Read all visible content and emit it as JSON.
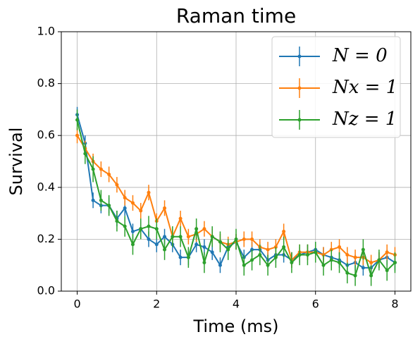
{
  "chart_data": {
    "type": "line",
    "title": "Raman time",
    "xlabel": "Time (ms)",
    "ylabel": "Survival",
    "x": [
      0,
      0.2,
      0.4,
      0.6,
      0.8,
      1.0,
      1.2,
      1.4,
      1.6,
      1.8,
      2.0,
      2.2,
      2.4,
      2.6,
      2.8,
      3.0,
      3.2,
      3.4,
      3.6,
      3.8,
      4.0,
      4.2,
      4.4,
      4.6,
      4.8,
      5.0,
      5.2,
      5.4,
      5.6,
      5.8,
      6.0,
      6.2,
      6.4,
      6.6,
      6.8,
      7.0,
      7.2,
      7.4,
      7.6,
      7.8,
      8.0
    ],
    "series": [
      {
        "name": "N = 0",
        "color": "#1f77b4",
        "values": [
          0.68,
          0.57,
          0.35,
          0.33,
          0.33,
          0.28,
          0.32,
          0.23,
          0.24,
          0.2,
          0.18,
          0.21,
          0.18,
          0.13,
          0.13,
          0.18,
          0.17,
          0.15,
          0.1,
          0.17,
          0.19,
          0.13,
          0.16,
          0.16,
          0.12,
          0.14,
          0.14,
          0.12,
          0.14,
          0.15,
          0.16,
          0.14,
          0.13,
          0.12,
          0.1,
          0.11,
          0.09,
          0.09,
          0.12,
          0.13,
          0.11
        ],
        "errors": [
          0.03,
          0.03,
          0.03,
          0.03,
          0.03,
          0.03,
          0.03,
          0.03,
          0.03,
          0.03,
          0.03,
          0.03,
          0.03,
          0.03,
          0.03,
          0.03,
          0.03,
          0.03,
          0.03,
          0.03,
          0.03,
          0.03,
          0.03,
          0.03,
          0.03,
          0.03,
          0.03,
          0.03,
          0.03,
          0.03,
          0.03,
          0.03,
          0.03,
          0.03,
          0.03,
          0.03,
          0.03,
          0.03,
          0.03,
          0.03,
          0.03
        ]
      },
      {
        "name": "Nx = 1",
        "color": "#ff7f0e",
        "values": [
          0.6,
          0.55,
          0.5,
          0.47,
          0.45,
          0.41,
          0.36,
          0.34,
          0.31,
          0.38,
          0.27,
          0.32,
          0.21,
          0.28,
          0.21,
          0.22,
          0.24,
          0.21,
          0.19,
          0.18,
          0.19,
          0.2,
          0.2,
          0.17,
          0.16,
          0.17,
          0.23,
          0.12,
          0.15,
          0.15,
          0.15,
          0.14,
          0.16,
          0.17,
          0.14,
          0.13,
          0.13,
          0.11,
          0.12,
          0.15,
          0.14
        ],
        "errors": [
          0.03,
          0.03,
          0.03,
          0.03,
          0.03,
          0.03,
          0.03,
          0.03,
          0.03,
          0.03,
          0.03,
          0.03,
          0.03,
          0.03,
          0.03,
          0.03,
          0.03,
          0.03,
          0.03,
          0.03,
          0.03,
          0.03,
          0.03,
          0.03,
          0.03,
          0.03,
          0.03,
          0.03,
          0.03,
          0.03,
          0.03,
          0.03,
          0.03,
          0.03,
          0.03,
          0.03,
          0.03,
          0.03,
          0.03,
          0.03,
          0.03
        ]
      },
      {
        "name": "Nz = 1",
        "color": "#2ca02c",
        "values": [
          0.66,
          0.53,
          0.47,
          0.35,
          0.33,
          0.27,
          0.25,
          0.18,
          0.24,
          0.25,
          0.24,
          0.16,
          0.21,
          0.21,
          0.13,
          0.24,
          0.11,
          0.21,
          0.19,
          0.16,
          0.2,
          0.1,
          0.12,
          0.14,
          0.1,
          0.13,
          0.17,
          0.11,
          0.14,
          0.14,
          0.15,
          0.1,
          0.12,
          0.11,
          0.07,
          0.06,
          0.16,
          0.06,
          0.12,
          0.08,
          0.11
        ],
        "errors": [
          0.04,
          0.04,
          0.05,
          0.04,
          0.04,
          0.04,
          0.04,
          0.04,
          0.04,
          0.04,
          0.04,
          0.04,
          0.04,
          0.04,
          0.04,
          0.04,
          0.04,
          0.04,
          0.04,
          0.04,
          0.04,
          0.04,
          0.04,
          0.04,
          0.04,
          0.04,
          0.04,
          0.04,
          0.04,
          0.04,
          0.04,
          0.04,
          0.04,
          0.04,
          0.04,
          0.04,
          0.04,
          0.04,
          0.04,
          0.04,
          0.04
        ]
      }
    ],
    "xlim": [
      -0.4,
      8.4
    ],
    "xticks": [
      0,
      2,
      4,
      6,
      8
    ],
    "ylim": [
      0,
      1
    ],
    "yticks": [
      {
        "value": 0,
        "label": "0.0"
      },
      0.2,
      0.4,
      0.6,
      0.8,
      {
        "value": 1,
        "label": "1.0"
      }
    ],
    "grid": true,
    "legend": "upper right"
  }
}
